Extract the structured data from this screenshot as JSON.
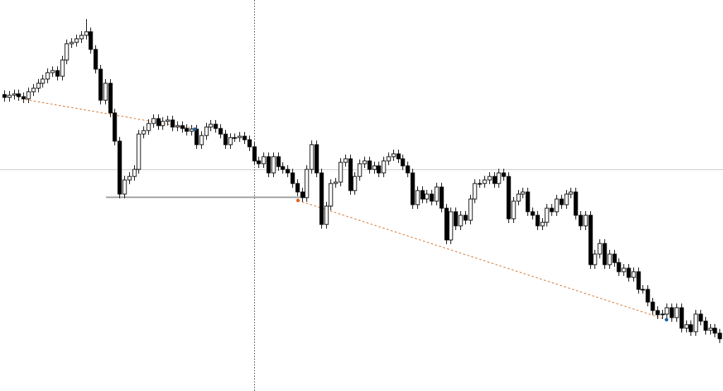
{
  "chart_data": {
    "type": "candlestick",
    "up_color": "#ffffff",
    "down_color": "#000000",
    "edge_color": "#000000",
    "ylim": [
      0,
      554
    ],
    "open": [
      420,
      416,
      419,
      421,
      417,
      414,
      424,
      429,
      436,
      442,
      451,
      454,
      446,
      469,
      492,
      494,
      499,
      504,
      509,
      484,
      456,
      412,
      436,
      394,
      354,
      279,
      299,
      304,
      314,
      364,
      369,
      379,
      386,
      376,
      382,
      384,
      374,
      376,
      372,
      368,
      371,
      349,
      362,
      374,
      378,
      372,
      364,
      349,
      359,
      359,
      361,
      356,
      346,
      326,
      322,
      332,
      309,
      332,
      318,
      314,
      309,
      294,
      282,
      274,
      314,
      349,
      309,
      236,
      262,
      294,
      296,
      324,
      329,
      284,
      304,
      322,
      326,
      314,
      319,
      309,
      326,
      332,
      336,
      329,
      319,
      309,
      264,
      284,
      272,
      279,
      269,
      289,
      259,
      214,
      254,
      234,
      249,
      242,
      272,
      294,
      294,
      299,
      304,
      294,
      309,
      304,
      244,
      269,
      279,
      282,
      254,
      249,
      234,
      239,
      259,
      254,
      272,
      264,
      279,
      282,
      249,
      234,
      249,
      179,
      194,
      209,
      179,
      194,
      182,
      169,
      174,
      161,
      169,
      144,
      144,
      126,
      114,
      108,
      109,
      118,
      104,
      118,
      89,
      94,
      84,
      109,
      99,
      86,
      89,
      82
    ],
    "high": [
      426,
      425,
      427,
      427,
      423,
      430,
      435,
      442,
      448,
      457,
      460,
      460,
      475,
      498,
      500,
      505,
      510,
      527,
      515,
      490,
      462,
      442,
      442,
      400,
      360,
      305,
      310,
      320,
      370,
      375,
      385,
      392,
      392,
      388,
      390,
      390,
      382,
      382,
      378,
      377,
      377,
      368,
      380,
      384,
      384,
      378,
      370,
      365,
      365,
      367,
      367,
      362,
      352,
      332,
      338,
      338,
      338,
      338,
      324,
      320,
      315,
      300,
      288,
      320,
      355,
      355,
      315,
      268,
      300,
      302,
      330,
      335,
      335,
      310,
      328,
      332,
      332,
      325,
      325,
      332,
      338,
      342,
      342,
      335,
      325,
      315,
      290,
      290,
      285,
      285,
      295,
      295,
      265,
      260,
      260,
      255,
      255,
      278,
      300,
      300,
      305,
      310,
      310,
      315,
      315,
      310,
      275,
      285,
      288,
      288,
      260,
      255,
      245,
      265,
      265,
      278,
      278,
      285,
      288,
      288,
      255,
      255,
      255,
      200,
      215,
      215,
      200,
      200,
      188,
      180,
      180,
      175,
      175,
      150,
      150,
      132,
      120,
      115,
      124,
      124,
      124,
      124,
      100,
      100,
      115,
      115,
      105,
      95,
      95,
      88
    ],
    "low": [
      410,
      410,
      413,
      411,
      408,
      408,
      418,
      423,
      430,
      436,
      445,
      440,
      440,
      463,
      486,
      488,
      493,
      498,
      478,
      450,
      406,
      406,
      388,
      348,
      273,
      273,
      293,
      298,
      308,
      358,
      363,
      373,
      370,
      370,
      376,
      368,
      368,
      366,
      362,
      362,
      343,
      343,
      356,
      368,
      366,
      358,
      343,
      343,
      353,
      353,
      350,
      340,
      320,
      316,
      316,
      303,
      303,
      312,
      308,
      303,
      288,
      276,
      268,
      268,
      308,
      303,
      230,
      230,
      256,
      288,
      290,
      318,
      278,
      278,
      298,
      316,
      308,
      308,
      303,
      303,
      320,
      326,
      323,
      313,
      303,
      258,
      258,
      266,
      266,
      263,
      263,
      253,
      208,
      208,
      228,
      228,
      236,
      236,
      266,
      288,
      288,
      293,
      288,
      288,
      298,
      238,
      238,
      263,
      273,
      248,
      243,
      228,
      228,
      233,
      248,
      248,
      258,
      258,
      273,
      243,
      228,
      228,
      173,
      173,
      188,
      173,
      173,
      176,
      163,
      163,
      155,
      155,
      138,
      138,
      120,
      108,
      102,
      102,
      103,
      98,
      98,
      83,
      83,
      78,
      78,
      93,
      80,
      80,
      76,
      68
    ],
    "close": [
      416,
      419,
      421,
      417,
      414,
      424,
      429,
      436,
      442,
      451,
      454,
      446,
      469,
      492,
      494,
      499,
      504,
      509,
      484,
      456,
      412,
      436,
      394,
      354,
      279,
      299,
      304,
      314,
      364,
      369,
      379,
      386,
      376,
      382,
      384,
      374,
      376,
      372,
      368,
      371,
      349,
      362,
      374,
      378,
      372,
      364,
      349,
      359,
      359,
      361,
      356,
      346,
      326,
      322,
      332,
      309,
      332,
      318,
      314,
      309,
      294,
      282,
      274,
      314,
      349,
      309,
      236,
      262,
      294,
      296,
      324,
      329,
      284,
      304,
      322,
      326,
      314,
      319,
      309,
      326,
      332,
      336,
      329,
      319,
      309,
      264,
      284,
      272,
      279,
      269,
      289,
      259,
      214,
      254,
      234,
      249,
      242,
      272,
      294,
      294,
      299,
      304,
      294,
      309,
      304,
      244,
      269,
      279,
      282,
      254,
      249,
      234,
      239,
      259,
      254,
      272,
      264,
      279,
      282,
      249,
      234,
      249,
      179,
      194,
      209,
      179,
      194,
      182,
      169,
      174,
      161,
      169,
      144,
      144,
      126,
      114,
      108,
      109,
      118,
      104,
      118,
      89,
      94,
      84,
      109,
      99,
      86,
      89,
      82,
      74
    ]
  }
}
